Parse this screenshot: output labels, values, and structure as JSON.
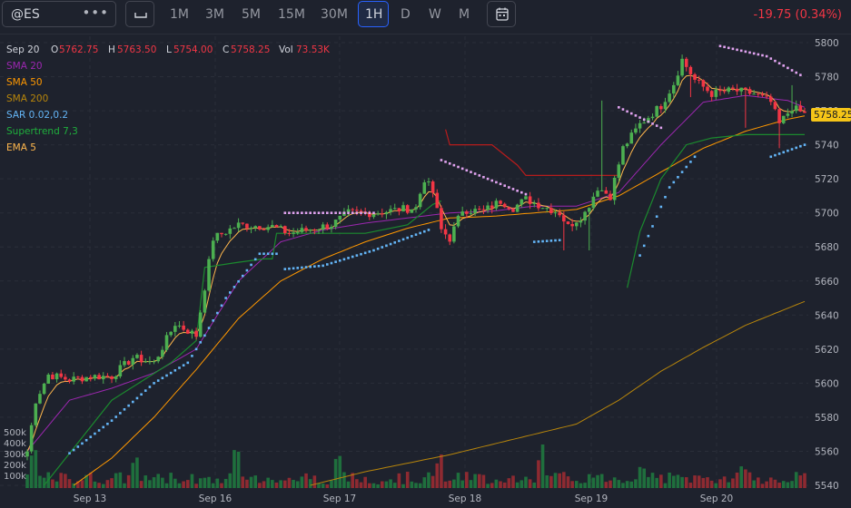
{
  "toolbar": {
    "symbol": "@ES",
    "more_icon": "•••",
    "periods": [
      "1M",
      "3M",
      "5M",
      "15M",
      "30M",
      "1H",
      "D",
      "W",
      "M"
    ],
    "active_period": "1H",
    "change": "-19.75 (0.34%)"
  },
  "legend": {
    "date": "Sep 20",
    "o_label": "O",
    "o_value": "5762.75",
    "h_label": "H",
    "h_value": "5763.50",
    "l_label": "L",
    "l_value": "5754.00",
    "c_label": "C",
    "c_value": "5758.25",
    "vol_label": "Vol",
    "vol_value": "73.53K",
    "indicators": [
      "SMA 20",
      "SMA 50",
      "SMA 200",
      "SAR 0.02,0.2",
      "Supertrend 7,3",
      "EMA 5"
    ]
  },
  "colors": {
    "up": "#26a69a",
    "up_candle": "#4caf50",
    "down": "#f23645",
    "sma20": "#9c27b0",
    "sma50": "#ff9800",
    "sma200": "#b8860b",
    "sar": "#64b5f6",
    "sar_down": "#e1a3f0",
    "supertrend_up": "#1b8a2e",
    "supertrend_down": "#b71c1c",
    "ema5": "#ffb74d",
    "price_tag": "#f5c518"
  },
  "chart_data": {
    "type": "candlestick",
    "title": "",
    "ylim": [
      5540,
      5802
    ],
    "y_ticks": [
      5800,
      5780,
      5760,
      5740,
      5720,
      5700,
      5680,
      5660,
      5640,
      5620,
      5600,
      5580,
      5560,
      5540
    ],
    "x_tick_labels": [
      "Sep 13",
      "Sep 16",
      "Sep 17",
      "Sep 18",
      "Sep 19",
      "Sep 20"
    ],
    "volume_ticks": [
      "500k",
      "400k",
      "300k",
      "200k",
      "100k"
    ],
    "last_price": "5758.25",
    "grid": true,
    "close_path": [
      [
        0,
        5560
      ],
      [
        2,
        5590
      ],
      [
        5,
        5605
      ],
      [
        10,
        5602
      ],
      [
        15,
        5604
      ],
      [
        20,
        5604
      ],
      [
        25,
        5615
      ],
      [
        30,
        5612
      ],
      [
        35,
        5635
      ],
      [
        40,
        5628
      ],
      [
        44,
        5685
      ],
      [
        50,
        5693
      ],
      [
        58,
        5692
      ],
      [
        62,
        5688
      ],
      [
        66,
        5690
      ],
      [
        72,
        5693
      ],
      [
        76,
        5700
      ],
      [
        82,
        5700
      ],
      [
        88,
        5702
      ],
      [
        92,
        5703
      ],
      [
        94,
        5720
      ],
      [
        96,
        5712
      ],
      [
        98,
        5690
      ],
      [
        100,
        5685
      ],
      [
        103,
        5702
      ],
      [
        108,
        5701
      ],
      [
        112,
        5707
      ],
      [
        115,
        5703
      ],
      [
        118,
        5708
      ],
      [
        122,
        5704
      ],
      [
        126,
        5700
      ],
      [
        128,
        5692
      ],
      [
        132,
        5700
      ],
      [
        135,
        5715
      ],
      [
        138,
        5710
      ],
      [
        141,
        5738
      ],
      [
        145,
        5752
      ],
      [
        150,
        5763
      ],
      [
        153,
        5776
      ],
      [
        155,
        5790
      ],
      [
        158,
        5778
      ],
      [
        162,
        5770
      ],
      [
        167,
        5772
      ],
      [
        172,
        5770
      ],
      [
        176,
        5765
      ],
      [
        178,
        5752
      ],
      [
        181,
        5762
      ],
      [
        184,
        5758
      ]
    ],
    "sma20": [
      [
        0,
        5560
      ],
      [
        10,
        5590
      ],
      [
        20,
        5597
      ],
      [
        30,
        5606
      ],
      [
        40,
        5620
      ],
      [
        50,
        5660
      ],
      [
        60,
        5683
      ],
      [
        70,
        5690
      ],
      [
        80,
        5694
      ],
      [
        90,
        5697
      ],
      [
        100,
        5700
      ],
      [
        110,
        5701
      ],
      [
        120,
        5704
      ],
      [
        130,
        5704
      ],
      [
        140,
        5712
      ],
      [
        150,
        5740
      ],
      [
        160,
        5765
      ],
      [
        170,
        5769
      ],
      [
        180,
        5766
      ],
      [
        184,
        5762
      ]
    ],
    "sma50": [
      [
        11,
        5540
      ],
      [
        20,
        5556
      ],
      [
        30,
        5580
      ],
      [
        40,
        5608
      ],
      [
        50,
        5638
      ],
      [
        60,
        5660
      ],
      [
        70,
        5673
      ],
      [
        80,
        5683
      ],
      [
        90,
        5691
      ],
      [
        100,
        5697
      ],
      [
        110,
        5698
      ],
      [
        120,
        5700
      ],
      [
        130,
        5702
      ],
      [
        140,
        5710
      ],
      [
        150,
        5724
      ],
      [
        160,
        5738
      ],
      [
        170,
        5748
      ],
      [
        180,
        5755
      ],
      [
        184,
        5757
      ]
    ],
    "sma200": [
      [
        67,
        5540
      ],
      [
        80,
        5548
      ],
      [
        100,
        5558
      ],
      [
        120,
        5570
      ],
      [
        130,
        5576
      ],
      [
        140,
        5590
      ],
      [
        150,
        5607
      ],
      [
        160,
        5621
      ],
      [
        170,
        5634
      ],
      [
        184,
        5648
      ]
    ]
  }
}
